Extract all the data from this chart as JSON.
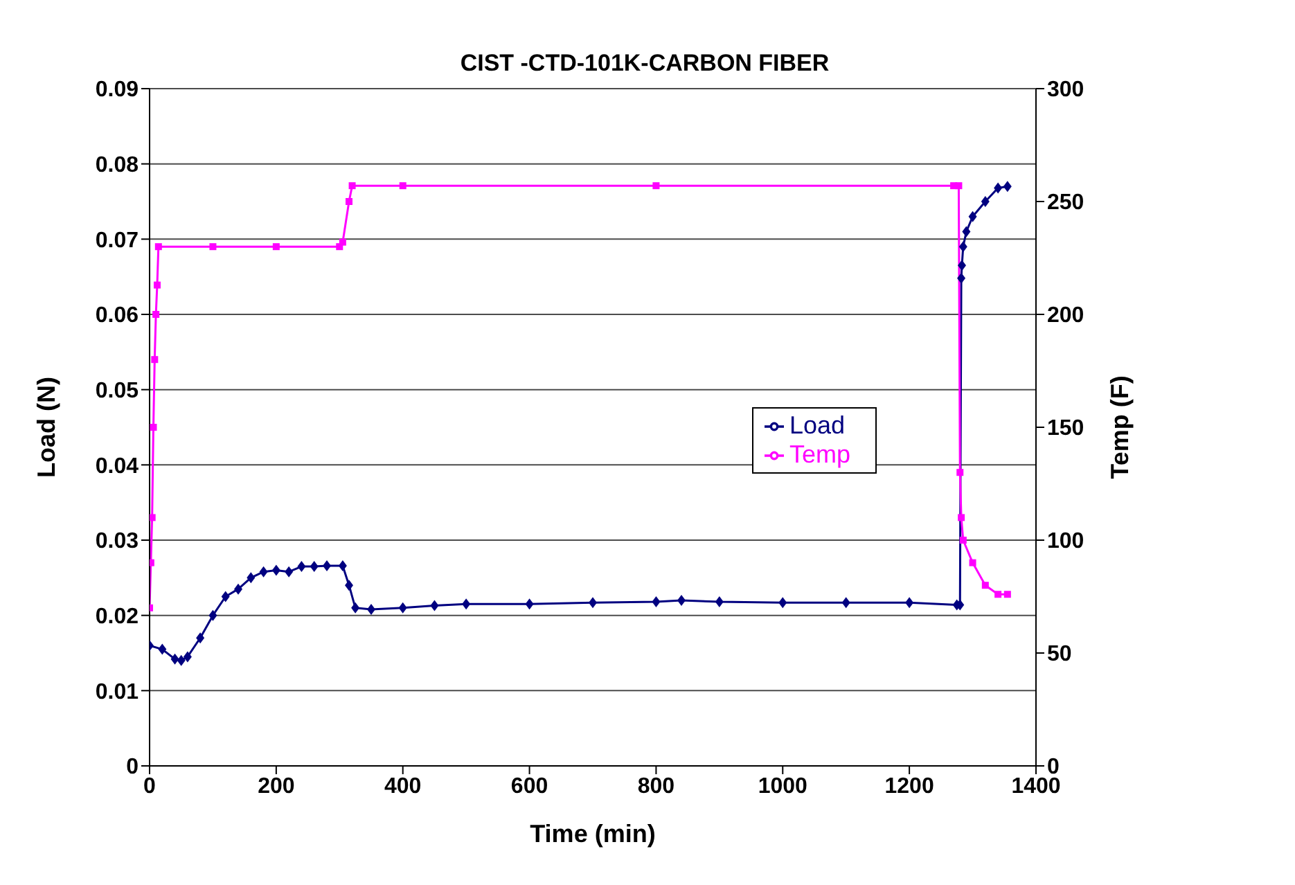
{
  "chart_data": {
    "type": "line",
    "title": "CIST -CTD-101K-CARBON FIBER",
    "xlabel": "Time (min)",
    "ylabel": "Load (N)",
    "y2label": "Temp (F)",
    "xlim": [
      0,
      1400
    ],
    "xticks": [
      0,
      200,
      400,
      600,
      800,
      1000,
      1200,
      1400
    ],
    "ylim": [
      0,
      0.09
    ],
    "yticks": [
      0,
      0.01,
      0.02,
      0.03,
      0.04,
      0.05,
      0.06,
      0.07,
      0.08,
      0.09
    ],
    "y2lim": [
      0,
      300
    ],
    "y2ticks": [
      0,
      50,
      100,
      150,
      200,
      250,
      300
    ],
    "grid": "y",
    "legend": "right",
    "line_style": "solid",
    "series": [
      {
        "name": "Load",
        "color": "#000080",
        "marker": "diamond",
        "x": [
          0,
          20,
          40,
          50,
          60,
          80,
          100,
          120,
          140,
          160,
          180,
          200,
          220,
          240,
          260,
          280,
          305,
          315,
          325,
          350,
          400,
          450,
          500,
          600,
          700,
          800,
          840,
          900,
          1000,
          1100,
          1200,
          1275,
          1280,
          1282,
          1283,
          1285,
          1290,
          1300,
          1320,
          1340,
          1355
        ],
        "values": [
          0.016,
          0.0155,
          0.0142,
          0.014,
          0.0145,
          0.017,
          0.02,
          0.0225,
          0.0235,
          0.025,
          0.0258,
          0.026,
          0.0258,
          0.0265,
          0.0265,
          0.0266,
          0.0266,
          0.024,
          0.021,
          0.0208,
          0.021,
          0.0213,
          0.0215,
          0.0215,
          0.0217,
          0.0218,
          0.022,
          0.0218,
          0.0217,
          0.0217,
          0.0217,
          0.0214,
          0.0214,
          0.0648,
          0.0665,
          0.069,
          0.071,
          0.073,
          0.075,
          0.0768,
          0.077
        ]
      },
      {
        "name": "Temp",
        "color": "#ff00ff",
        "marker": "square",
        "axis": "y2",
        "x": [
          0,
          2,
          4,
          6,
          8,
          10,
          12,
          14,
          100,
          200,
          300,
          305,
          315,
          320,
          400,
          800,
          1270,
          1278,
          1280,
          1282,
          1285,
          1300,
          1320,
          1340,
          1355
        ],
        "values": [
          70,
          90,
          110,
          150,
          180,
          200,
          213,
          230,
          230,
          230,
          230,
          232,
          250,
          257,
          257,
          257,
          257,
          257,
          130,
          110,
          100,
          90,
          80,
          76,
          76
        ]
      }
    ]
  }
}
